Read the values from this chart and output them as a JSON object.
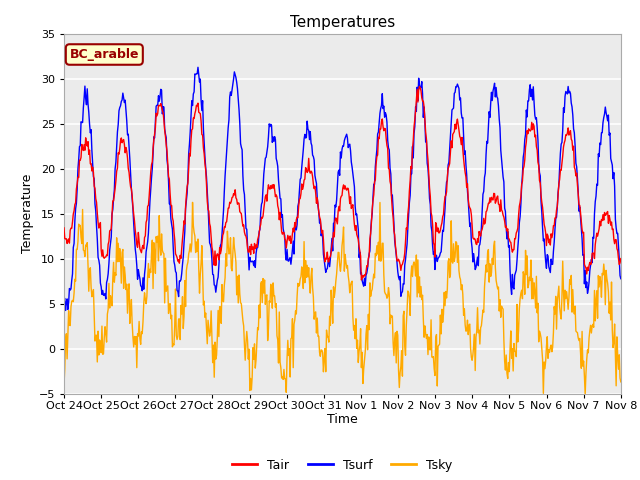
{
  "title": "Temperatures",
  "xlabel": "Time",
  "ylabel": "Temperature",
  "ylim": [
    -5,
    35
  ],
  "label_text": "BC_arable",
  "x_tick_labels": [
    "Oct 24",
    "Oct 25",
    "Oct 26",
    "Oct 27",
    "Oct 28",
    "Oct 29",
    "Oct 30",
    "Oct 31",
    "Nov 1",
    "Nov 2",
    "Nov 3",
    "Nov 4",
    "Nov 5",
    "Nov 6",
    "Nov 7",
    "Nov 8"
  ],
  "line_colors": {
    "Tair": "#ff0000",
    "Tsurf": "#0000ff",
    "Tsky": "#ffaa00"
  },
  "background_color": "#ebebeb",
  "label_bg": "#ffffcc",
  "label_border": "#990000",
  "label_text_color": "#990000",
  "yticks": [
    -5,
    0,
    5,
    10,
    15,
    20,
    25,
    30,
    35
  ],
  "figsize": [
    6.4,
    4.8
  ],
  "dpi": 100
}
